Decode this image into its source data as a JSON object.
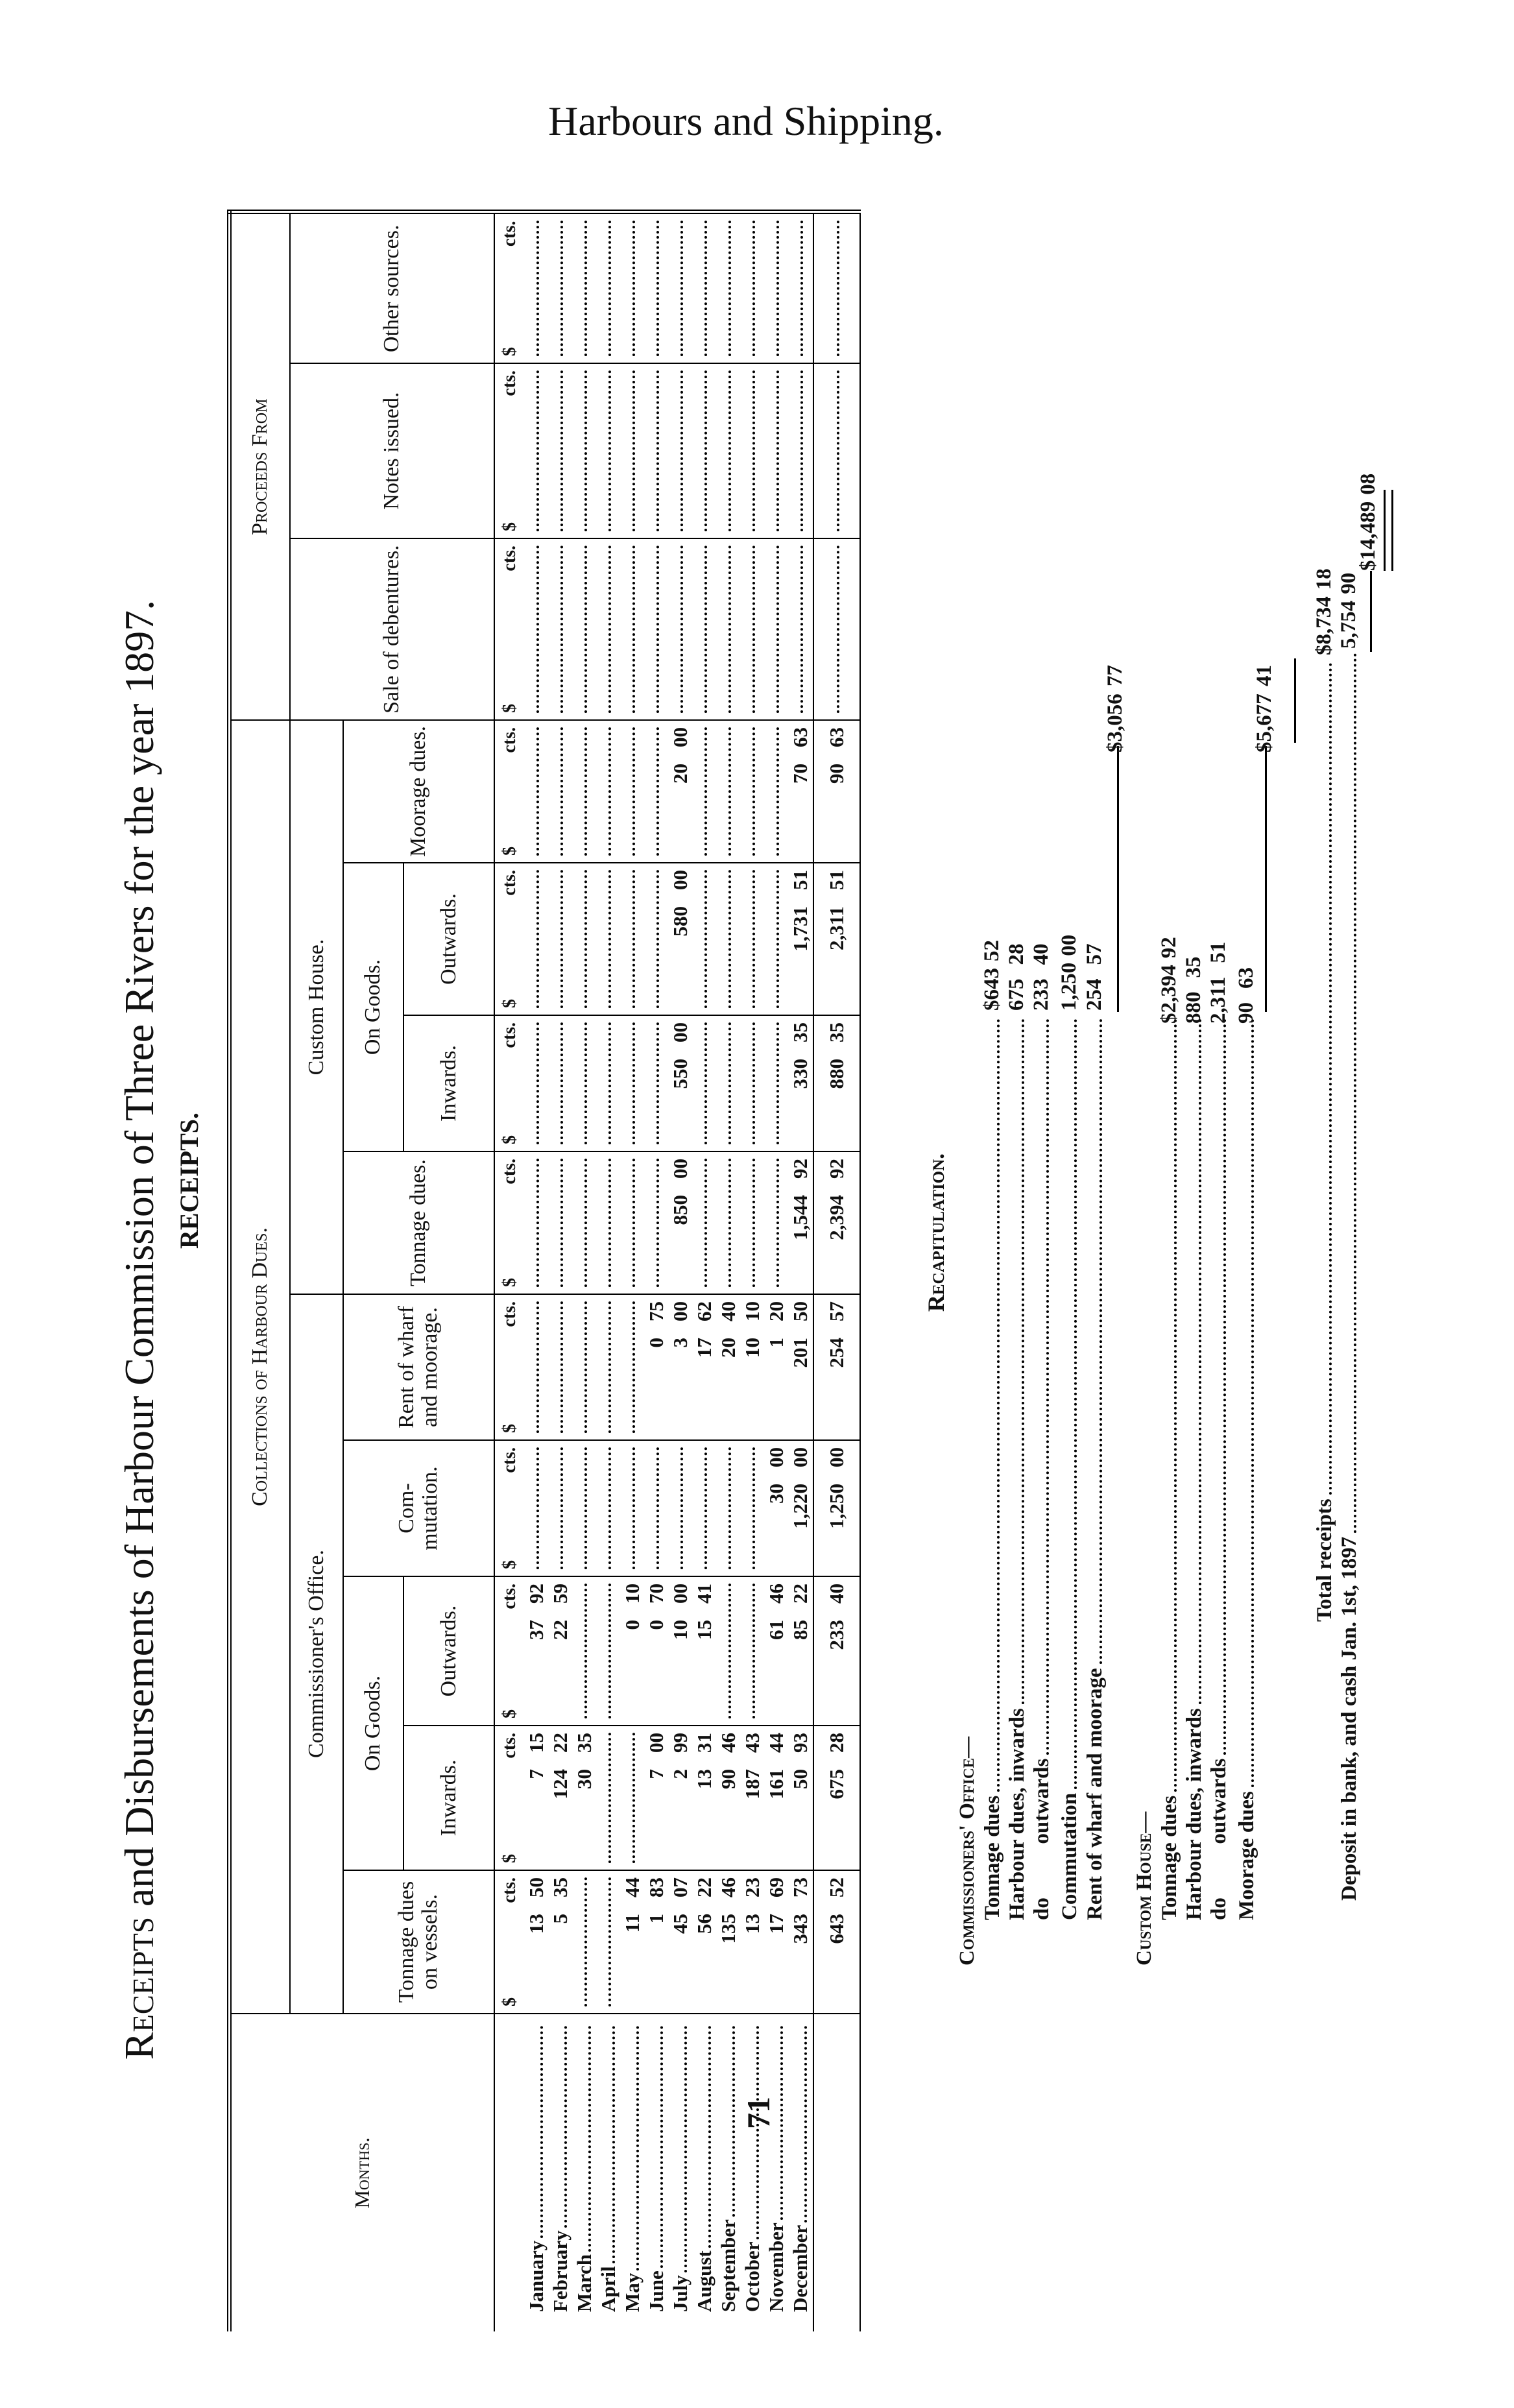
{
  "running_head": "Harbours and Shipping.",
  "title_lead": "Receipts",
  "title_rest": " and Disbursements of Harbour Commission of Three Rivers for the year 1897.",
  "subtitle": "RECEIPTS.",
  "page_number": "71",
  "header": {
    "months": "Months.",
    "collections": "Collections of Harbour Dues.",
    "proceeds": "Proceeds From",
    "commissioners_office": "Commissioner's Office.",
    "custom_house": "Custom House.",
    "tonnage_vessels": "Tonnage dues on vessels.",
    "on_goods": "On Goods.",
    "inwards": "Inwards.",
    "outwards": "Outwards.",
    "commutation": "Com-mutation.",
    "rent_wharf": "Rent of wharf and moorage.",
    "tonnage_dues": "Tonnage dues.",
    "moorage_dues": "Moorage dues.",
    "sale_debentures": "Sale of debentures.",
    "notes_issued": "Notes issued.",
    "other_sources": "Other sources.",
    "dollar_sign": "$",
    "cents_label": "cts."
  },
  "rows": [
    {
      "month": "January",
      "values": [
        [
          "13",
          "50"
        ],
        [
          "7",
          "15"
        ],
        [
          "37",
          "92"
        ],
        null,
        null,
        null,
        null,
        null,
        null,
        null,
        null,
        null
      ]
    },
    {
      "month": "February",
      "values": [
        [
          "5",
          "35"
        ],
        [
          "124",
          "22"
        ],
        [
          "22",
          "59"
        ],
        null,
        null,
        null,
        null,
        null,
        null,
        null,
        null,
        null
      ]
    },
    {
      "month": "March",
      "values": [
        null,
        [
          "30",
          "35"
        ],
        null,
        null,
        null,
        null,
        null,
        null,
        null,
        null,
        null,
        null
      ]
    },
    {
      "month": "April",
      "values": [
        null,
        null,
        null,
        null,
        null,
        null,
        null,
        null,
        null,
        null,
        null,
        null
      ]
    },
    {
      "month": "May",
      "values": [
        [
          "11",
          "44"
        ],
        null,
        [
          "0",
          "10"
        ],
        null,
        null,
        null,
        null,
        null,
        null,
        null,
        null,
        null
      ]
    },
    {
      "month": "June",
      "values": [
        [
          "1",
          "83"
        ],
        [
          "7",
          "00"
        ],
        [
          "0",
          "70"
        ],
        null,
        [
          "0",
          "75"
        ],
        null,
        null,
        null,
        null,
        null,
        null,
        null
      ]
    },
    {
      "month": "July",
      "values": [
        [
          "45",
          "07"
        ],
        [
          "2",
          "99"
        ],
        [
          "10",
          "00"
        ],
        null,
        [
          "3",
          "00"
        ],
        [
          "850",
          "00"
        ],
        [
          "550",
          "00"
        ],
        [
          "580",
          "00"
        ],
        [
          "20",
          "00"
        ],
        null,
        null,
        null
      ]
    },
    {
      "month": "August",
      "values": [
        [
          "56",
          "22"
        ],
        [
          "13",
          "31"
        ],
        [
          "15",
          "41"
        ],
        null,
        [
          "17",
          "62"
        ],
        null,
        null,
        null,
        null,
        null,
        null,
        null
      ]
    },
    {
      "month": "September",
      "values": [
        [
          "135",
          "46"
        ],
        [
          "90",
          "46"
        ],
        null,
        null,
        [
          "20",
          "40"
        ],
        null,
        null,
        null,
        null,
        null,
        null,
        null
      ]
    },
    {
      "month": "October",
      "values": [
        [
          "13",
          "23"
        ],
        [
          "187",
          "43"
        ],
        null,
        null,
        [
          "10",
          "10"
        ],
        null,
        null,
        null,
        null,
        null,
        null,
        null
      ]
    },
    {
      "month": "November",
      "values": [
        [
          "17",
          "69"
        ],
        [
          "161",
          "44"
        ],
        [
          "61",
          "46"
        ],
        [
          "30",
          "00"
        ],
        [
          "1",
          "20"
        ],
        null,
        null,
        null,
        null,
        null,
        null,
        null
      ]
    },
    {
      "month": "December",
      "values": [
        [
          "343",
          "73"
        ],
        [
          "50",
          "93"
        ],
        [
          "85",
          "22"
        ],
        [
          "1,220",
          "00"
        ],
        [
          "201",
          "50"
        ],
        [
          "1,544",
          "92"
        ],
        [
          "330",
          "35"
        ],
        [
          "1,731",
          "51"
        ],
        [
          "70",
          "63"
        ],
        null,
        null,
        null
      ]
    }
  ],
  "totals": [
    [
      "643",
      "52"
    ],
    [
      "675",
      "28"
    ],
    [
      "233",
      "40"
    ],
    [
      "1,250",
      "00"
    ],
    [
      "254",
      "57"
    ],
    [
      "2,394",
      "92"
    ],
    [
      "880",
      "35"
    ],
    [
      "2,311",
      "51"
    ],
    [
      "90",
      "63"
    ],
    null,
    null,
    null
  ],
  "recap": {
    "heading": "Recapitulation.",
    "commissioners_heading": "Commissioners' Office—",
    "commissioners_items": [
      {
        "label": "Tonnage dues",
        "d": "643",
        "c": "52"
      },
      {
        "label": "Harbour dues, inwards",
        "d": "675",
        "c": "28"
      },
      {
        "label": "do          outwards",
        "d": "233",
        "c": "40"
      },
      {
        "label": "Commutation",
        "d": "1,250",
        "c": "00"
      },
      {
        "label": "Rent of wharf and moorage",
        "d": "254",
        "c": "57"
      }
    ],
    "commissioners_subtotal": {
      "d": "3,056",
      "c": "77"
    },
    "custom_heading": "Custom House—",
    "custom_items": [
      {
        "label": "Tonnage dues",
        "d": "2,394",
        "c": "92"
      },
      {
        "label": "Harbour dues, inwards",
        "d": "880",
        "c": "35"
      },
      {
        "label": "do          outwards",
        "d": "2,311",
        "c": "51"
      },
      {
        "label": "Moorage dues",
        "d": "90",
        "c": "63"
      }
    ],
    "custom_subtotal": {
      "d": "5,677",
      "c": "41"
    },
    "total_receipts_label": "Total receipts",
    "total_receipts": {
      "d": "8,734",
      "c": "18"
    },
    "deposit_label": "Deposit in bank, and cash Jan. 1st, 1897",
    "deposit": {
      "d": "5,754",
      "c": "90"
    },
    "grand_total": {
      "d": "14,489",
      "c": "08"
    },
    "dollar_sign": "$"
  }
}
